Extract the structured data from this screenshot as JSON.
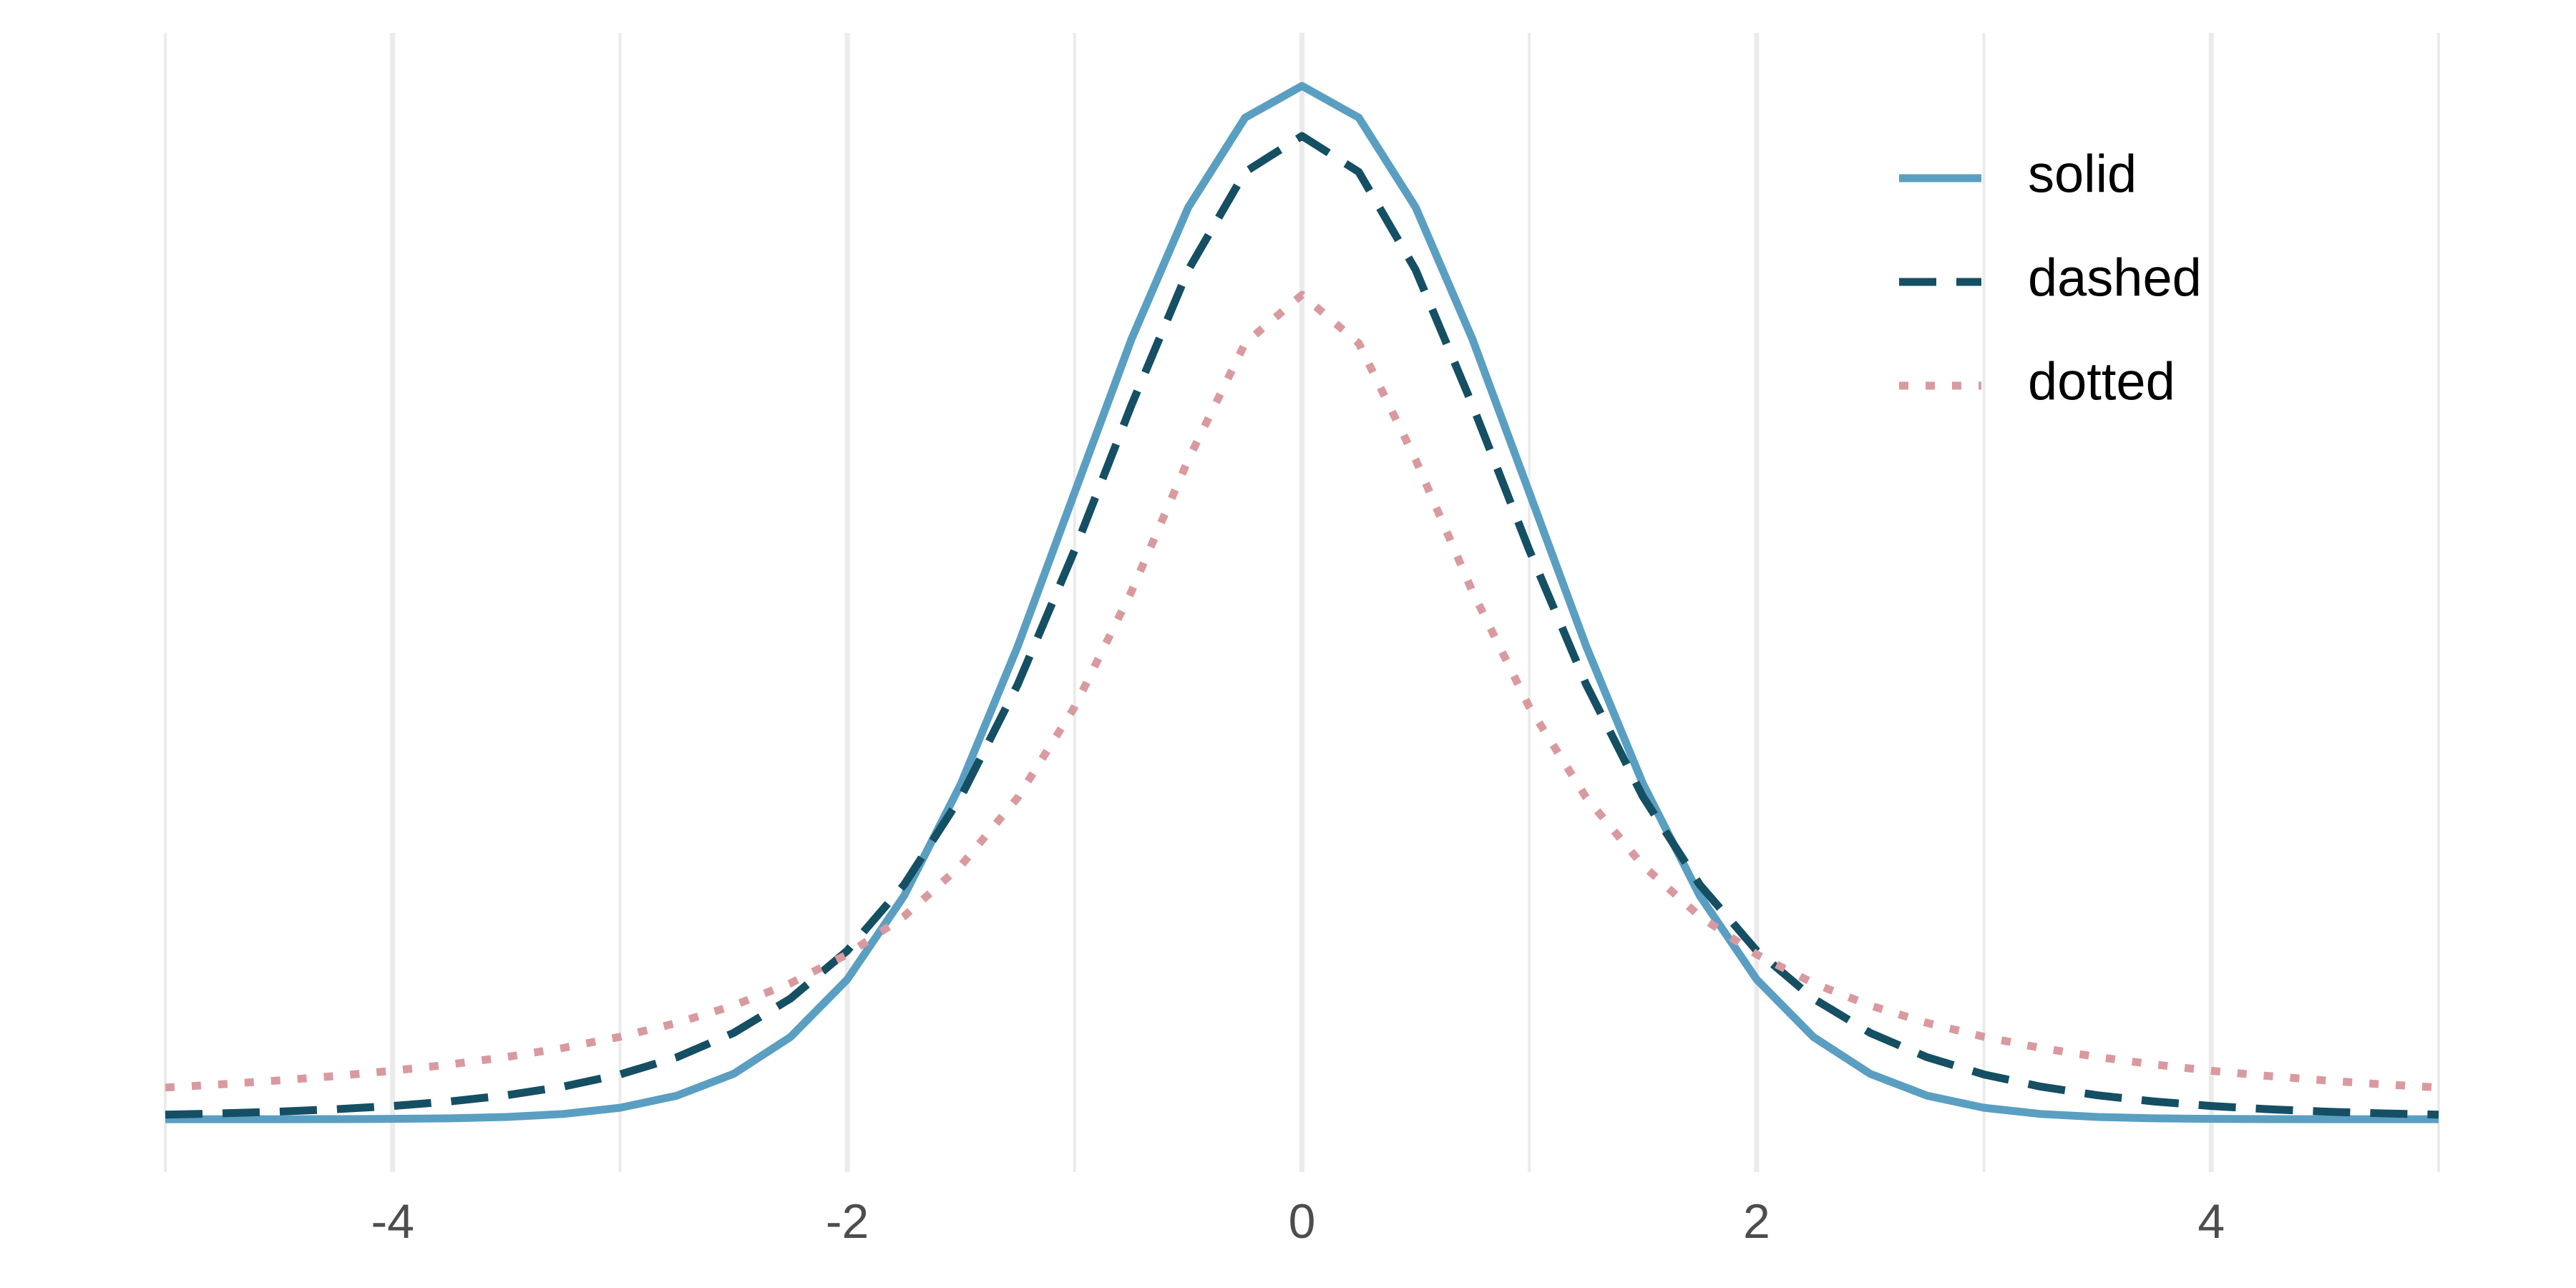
{
  "chart_data": {
    "type": "line",
    "x": [
      -5,
      -4.75,
      -4.5,
      -4.25,
      -4,
      -3.75,
      -3.5,
      -3.25,
      -3,
      -2.75,
      -2.5,
      -2.25,
      -2,
      -1.75,
      -1.5,
      -1.25,
      -1,
      -0.75,
      -0.5,
      -0.25,
      0,
      0.25,
      0.5,
      0.75,
      1,
      1.25,
      1.5,
      1.75,
      2,
      2.25,
      2.5,
      2.75,
      3,
      3.25,
      3.5,
      3.75,
      4,
      4.25,
      4.5,
      4.75,
      5
    ],
    "series": [
      {
        "name": "solid",
        "color": "#5a9fc2",
        "linestyle": "solid",
        "values": [
          0,
          1e-05,
          2e-05,
          5e-05,
          0.00013,
          0.00035,
          0.00087,
          0.00203,
          0.00443,
          0.00909,
          0.01753,
          0.03174,
          0.05399,
          0.08628,
          0.12952,
          0.18265,
          0.24197,
          0.30114,
          0.35207,
          0.38667,
          0.39894,
          0.38667,
          0.35207,
          0.30114,
          0.24197,
          0.18265,
          0.12952,
          0.08628,
          0.05399,
          0.03174,
          0.01753,
          0.00909,
          0.00443,
          0.00203,
          0.00087,
          0.00035,
          0.00013,
          5e-05,
          2e-05,
          1e-05,
          0
        ]
      },
      {
        "name": "dashed",
        "color": "#154f63",
        "linestyle": "dashed",
        "values": [
          0.00176,
          0.00227,
          0.00295,
          0.00387,
          0.00512,
          0.00685,
          0.00924,
          0.01259,
          0.01729,
          0.02393,
          0.03333,
          0.04657,
          0.06509,
          0.09054,
          0.12452,
          0.1679,
          0.21968,
          0.2757,
          0.32792,
          0.36572,
          0.37961,
          0.36572,
          0.32792,
          0.2757,
          0.21968,
          0.1679,
          0.12452,
          0.09054,
          0.06509,
          0.04657,
          0.03333,
          0.02393,
          0.01729,
          0.01259,
          0.00924,
          0.00685,
          0.00512,
          0.00387,
          0.00295,
          0.00227,
          0.00176
        ]
      },
      {
        "name": "dotted",
        "color": "#d99a9f",
        "linestyle": "dotted",
        "values": [
          0.01224,
          0.01351,
          0.01498,
          0.0167,
          0.01872,
          0.02113,
          0.02402,
          0.02753,
          0.03183,
          0.03718,
          0.0439,
          0.0525,
          0.06366,
          0.07835,
          0.09794,
          0.12422,
          0.15915,
          0.20372,
          0.25465,
          0.29959,
          0.31831,
          0.29959,
          0.25465,
          0.20372,
          0.15915,
          0.12422,
          0.09794,
          0.07835,
          0.06366,
          0.0525,
          0.0439,
          0.03718,
          0.03183,
          0.02753,
          0.02402,
          0.02113,
          0.01872,
          0.0167,
          0.01498,
          0.01351,
          0.01224
        ]
      }
    ],
    "xlim": [
      -5,
      5
    ],
    "ylim": [
      -0.0204,
      0.4194
    ],
    "xticks": [
      -4,
      -2,
      0,
      2,
      4
    ],
    "x_minor_grid": [
      -5,
      -3,
      -1,
      1,
      3,
      5
    ],
    "grid": "vertical",
    "legend": "top-right"
  }
}
